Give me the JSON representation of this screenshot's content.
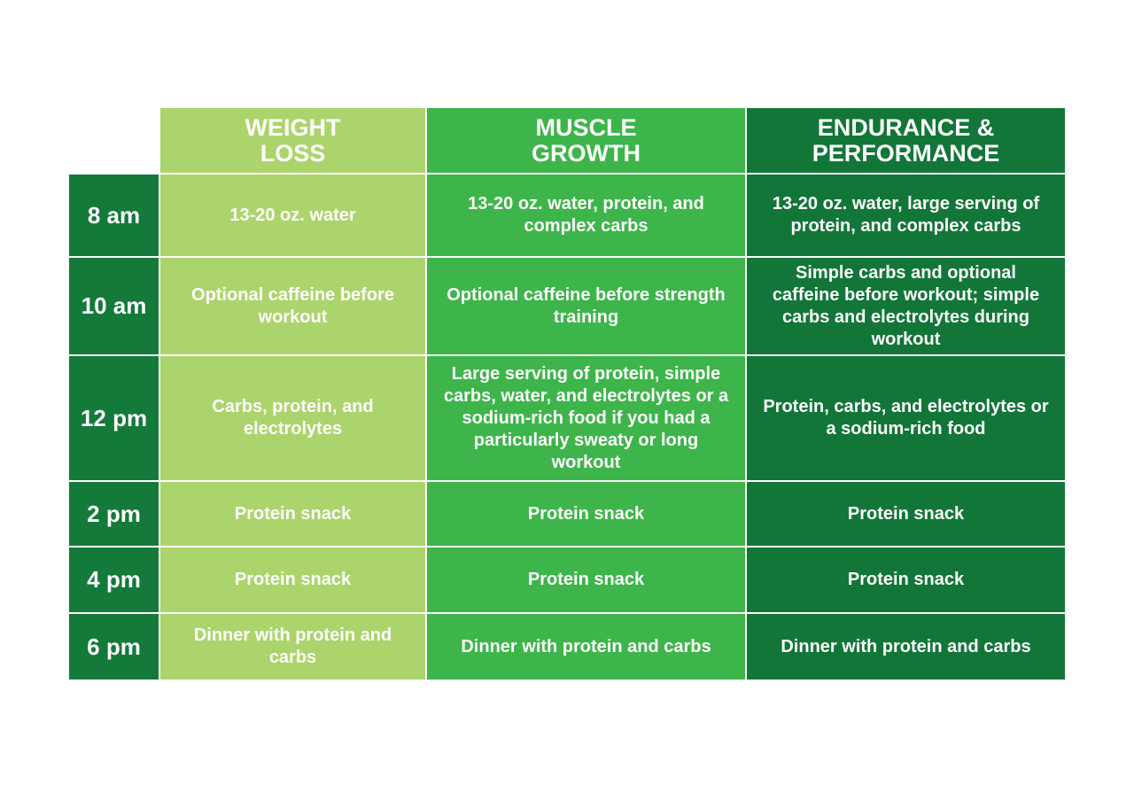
{
  "table": {
    "columns": [
      "WEIGHT LOSS",
      "MUSCLE GROWTH",
      "ENDURANCE & PERFORMANCE"
    ],
    "rows": [
      {
        "time": "8 am",
        "cells": [
          "13-20 oz. water",
          "13-20 oz. water, protein, and complex carbs",
          "13-20 oz. water, large serving of protein, and complex carbs"
        ]
      },
      {
        "time": "10 am",
        "cells": [
          "Optional caffeine before workout",
          "Optional caffeine before strength training",
          "Simple carbs and optional caffeine before workout; simple carbs and electrolytes during workout"
        ]
      },
      {
        "time": "12 pm",
        "cells": [
          "Carbs, protein, and electrolytes",
          "Large serving of protein, simple carbs, water, and electrolytes or a sodium-rich food if you had a particularly sweaty or long workout",
          "Protein, carbs, and electrolytes or a sodium-rich food"
        ]
      },
      {
        "time": "2 pm",
        "cells": [
          "Protein snack",
          "Protein snack",
          "Protein snack"
        ]
      },
      {
        "time": "4 pm",
        "cells": [
          "Protein snack",
          "Protein snack",
          "Protein snack"
        ]
      },
      {
        "time": "6 pm",
        "cells": [
          "Dinner with protein and carbs",
          "Dinner with protein and carbs",
          "Dinner with protein and carbs"
        ]
      }
    ]
  }
}
